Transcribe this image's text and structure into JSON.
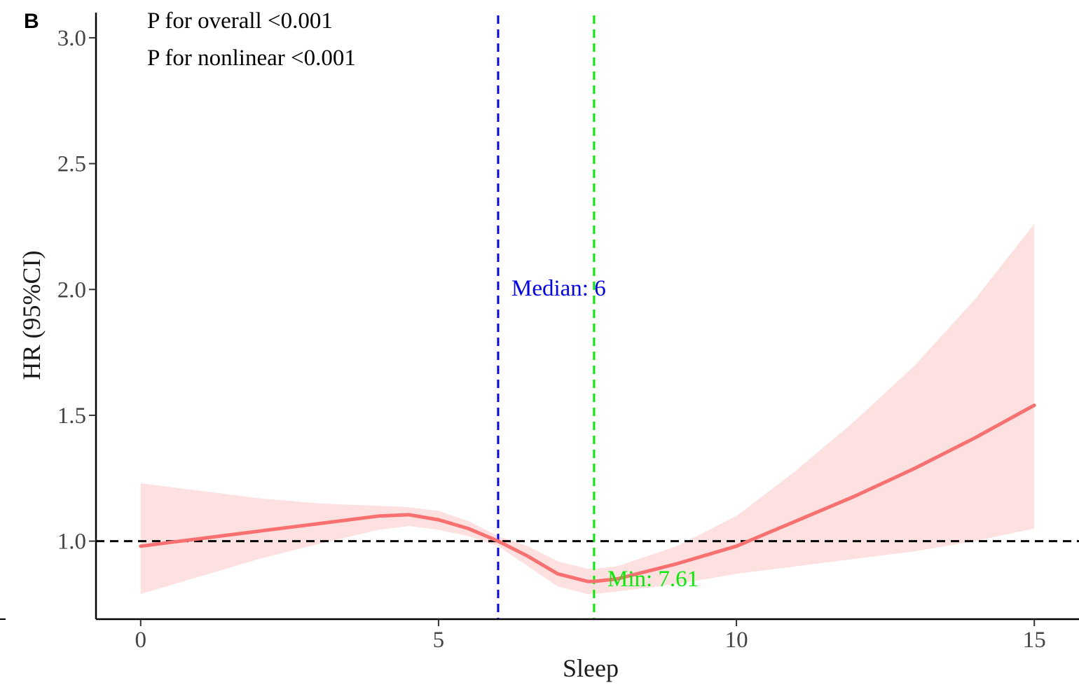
{
  "panel_label": "B",
  "chart_data": {
    "type": "line",
    "title": "",
    "xlabel": "Sleep",
    "ylabel": "HR (95%CI)",
    "xlim": [
      -0.75,
      15.75
    ],
    "ylim": [
      0.69,
      3.1
    ],
    "x_ticks": [
      0,
      5,
      10,
      15
    ],
    "y_ticks": [
      1.0,
      1.5,
      2.0,
      2.5,
      3.0
    ],
    "x_tick_labels": [
      "0",
      "5",
      "10",
      "15"
    ],
    "y_tick_labels": [
      "1.0",
      "1.5",
      "2.0",
      "2.5",
      "3.0"
    ],
    "grid": false,
    "legend": "none",
    "annotations": [
      {
        "text": "P for overall <0.001"
      },
      {
        "text": "P for nonlinear <0.001"
      }
    ],
    "reference_lines": [
      {
        "axis": "y",
        "value": 1.0,
        "color": "#000000",
        "style": "dashed"
      },
      {
        "axis": "x",
        "value": 6,
        "color": "#0000ff",
        "style": "dashed",
        "label": "Median: 6"
      },
      {
        "axis": "x",
        "value": 7.61,
        "color": "#00ee00",
        "style": "dashed",
        "label": "Min: 7.61"
      }
    ],
    "series": [
      {
        "color": "#f87070",
        "band_color": "#fde0e0",
        "x": [
          0,
          1,
          2,
          3,
          4,
          4.5,
          5,
          5.5,
          6,
          6.5,
          7,
          7.5,
          7.61,
          8,
          9,
          10,
          11,
          12,
          13,
          14,
          15
        ],
        "y": [
          0.98,
          1.01,
          1.04,
          1.07,
          1.1,
          1.105,
          1.085,
          1.05,
          1.0,
          0.94,
          0.87,
          0.84,
          0.84,
          0.85,
          0.91,
          0.98,
          1.08,
          1.18,
          1.29,
          1.41,
          1.54
        ],
        "lower": [
          0.79,
          0.86,
          0.93,
          0.99,
          1.045,
          1.06,
          1.045,
          1.02,
          0.98,
          0.9,
          0.82,
          0.79,
          0.79,
          0.8,
          0.83,
          0.87,
          0.9,
          0.93,
          0.96,
          1.0,
          1.05
        ],
        "upper": [
          1.23,
          1.2,
          1.17,
          1.15,
          1.14,
          1.135,
          1.12,
          1.08,
          1.02,
          0.98,
          0.92,
          0.89,
          0.89,
          0.9,
          0.98,
          1.1,
          1.28,
          1.48,
          1.7,
          1.96,
          2.26
        ]
      }
    ]
  }
}
